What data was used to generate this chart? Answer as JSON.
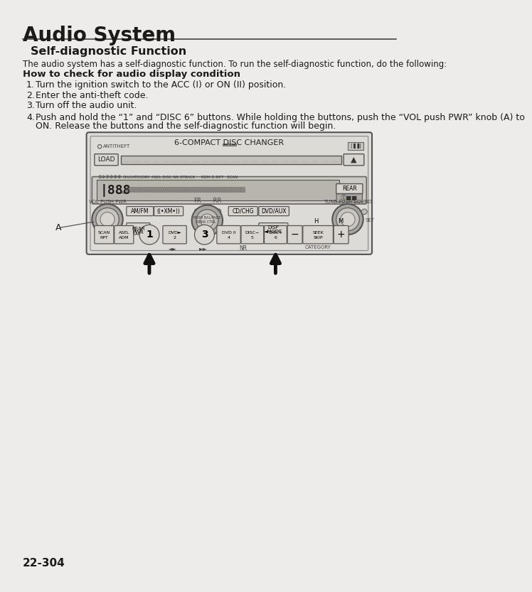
{
  "title": "Audio System",
  "section_title": "Self-diagnostic Function",
  "intro_text": "The audio system has a self-diagnostic function. To run the self-diagnostic function, do the following:",
  "subsection_title": "How to check for audio display condition",
  "steps": [
    "Turn the ignition switch to the ACC (I) or ON (II) position.",
    "Enter the anti-theft code.",
    "Turn off the audio unit.",
    "Push and hold the ‘1’’ and ‘‘DISC 6’’ buttons. While holding the buttons, push the ‘‘VOL push PWR’’ knob (A) to",
    "ON. Release the buttons and the self-diagnostic function will begin."
  ],
  "page_number": "22-304",
  "bg_color": "#eeecea",
  "text_color": "#1a1a1a",
  "diagram_title": "6-COMPACT DISC CHANGER",
  "unit_bg": "#e2e0dc",
  "btn_color": "#d8d5d0",
  "display_bg": "#b8b5ae",
  "knob_outer": "#b0ada8",
  "knob_inner": "#ccc9c4"
}
